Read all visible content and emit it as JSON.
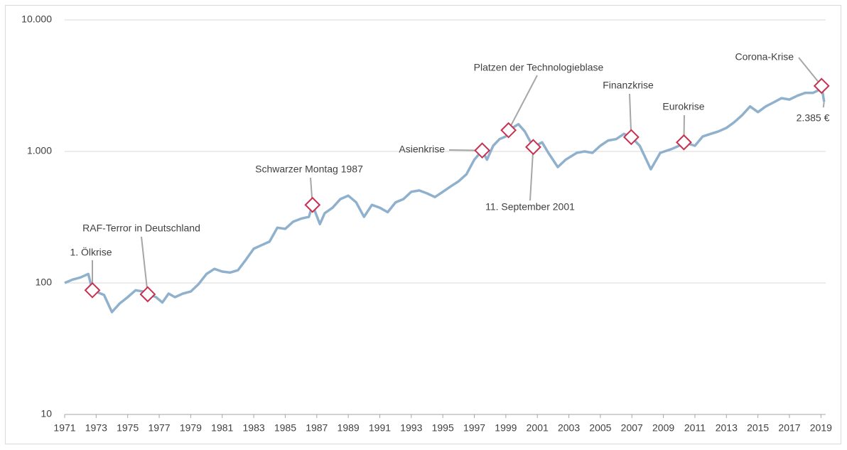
{
  "chart_data": {
    "type": "line",
    "log_scale": true,
    "grid": true,
    "xlim": [
      1971,
      2019.3
    ],
    "xticks": [
      1971,
      1973,
      1975,
      1977,
      1979,
      1981,
      1983,
      1985,
      1987,
      1989,
      1991,
      1993,
      1995,
      1997,
      1999,
      2001,
      2003,
      2005,
      2007,
      2009,
      2011,
      2013,
      2015,
      2017,
      2019
    ],
    "ylim": [
      10,
      10000
    ],
    "yticks": [
      10,
      100,
      {
        "value": 1000,
        "label": "1.000"
      },
      {
        "value": 10000,
        "label": "10.000"
      }
    ],
    "series": [
      {
        "color": "#8fb1cd",
        "x": [
          1971,
          1971.5,
          1972,
          1972.5,
          1972.76,
          1973.5,
          1974,
          1974.5,
          1975,
          1975.5,
          1976,
          1976.27,
          1976.8,
          1977.2,
          1977.6,
          1978,
          1978.5,
          1979,
          1979.5,
          1980,
          1980.5,
          1981,
          1981.5,
          1982,
          1982.5,
          1983,
          1983.5,
          1984,
          1984.5,
          1985,
          1985.5,
          1986,
          1986.5,
          1986.73,
          1987.2,
          1987.5,
          1988,
          1988.5,
          1989,
          1989.5,
          1990,
          1990.5,
          1991,
          1991.5,
          1992,
          1992.5,
          1993,
          1993.5,
          1994,
          1994.5,
          1995,
          1995.5,
          1996,
          1996.5,
          1997,
          1997.5,
          1997.8,
          1998.2,
          1998.6,
          1999,
          1999.17,
          1999.8,
          2000.2,
          2000.74,
          2001.3,
          2001.7,
          2002.3,
          2002.8,
          2003.5,
          2004,
          2004.5,
          2005,
          2005.5,
          2006,
          2006.5,
          2006.96,
          2007.5,
          2008.2,
          2008.8,
          2009.5,
          2010,
          2010.3,
          2011,
          2011.5,
          2012,
          2012.5,
          2013,
          2013.5,
          2014,
          2014.5,
          2015,
          2015.5,
          2016,
          2016.5,
          2017,
          2017.5,
          2018,
          2018.5,
          2019,
          2019.04,
          2019.2
        ],
        "values": [
          100,
          106,
          110,
          117,
          88,
          81,
          60,
          70,
          78,
          88,
          86,
          82,
          78,
          71,
          83,
          78,
          83,
          86,
          98,
          117,
          128,
          122,
          120,
          125,
          150,
          182,
          194,
          206,
          263,
          258,
          292,
          308,
          318,
          392,
          280,
          339,
          373,
          434,
          461,
          410,
          318,
          392,
          373,
          345,
          410,
          434,
          493,
          505,
          480,
          450,
          493,
          542,
          592,
          670,
          866,
          1017,
          866,
          1105,
          1240,
          1300,
          1450,
          1610,
          1420,
          1080,
          1172,
          975,
          760,
          866,
          975,
          1000,
          975,
          1105,
          1212,
          1240,
          1360,
          1285,
          1105,
          732,
          975,
          1040,
          1105,
          1172,
          1105,
          1300,
          1360,
          1420,
          1510,
          1670,
          1890,
          2200,
          1990,
          2200,
          2360,
          2540,
          2480,
          2650,
          2790,
          2790,
          2980,
          3150,
          2385
        ]
      }
    ],
    "annotations": [
      {
        "text": "1. Ölkrise",
        "x": 1972.76,
        "y": 88
      },
      {
        "text": "RAF-Terror in Deutschland",
        "x": 1976.27,
        "y": 82
      },
      {
        "text": "Schwarzer Montag 1987",
        "x": 1986.73,
        "y": 392
      },
      {
        "text": "Asienkrise",
        "x": 1997.5,
        "y": 1017
      },
      {
        "text": "Platzen der Technologieblase",
        "x": 1999.17,
        "y": 1450
      },
      {
        "text": "11. September 2001",
        "x": 2000.74,
        "y": 1080
      },
      {
        "text": "Finanzkrise",
        "x": 2006.96,
        "y": 1285
      },
      {
        "text": "Eurokrise",
        "x": 2010.3,
        "y": 1172
      },
      {
        "text": "Corona-Krise",
        "x": 2019.04,
        "y": 3150
      }
    ],
    "end_label": "2.385 €"
  }
}
